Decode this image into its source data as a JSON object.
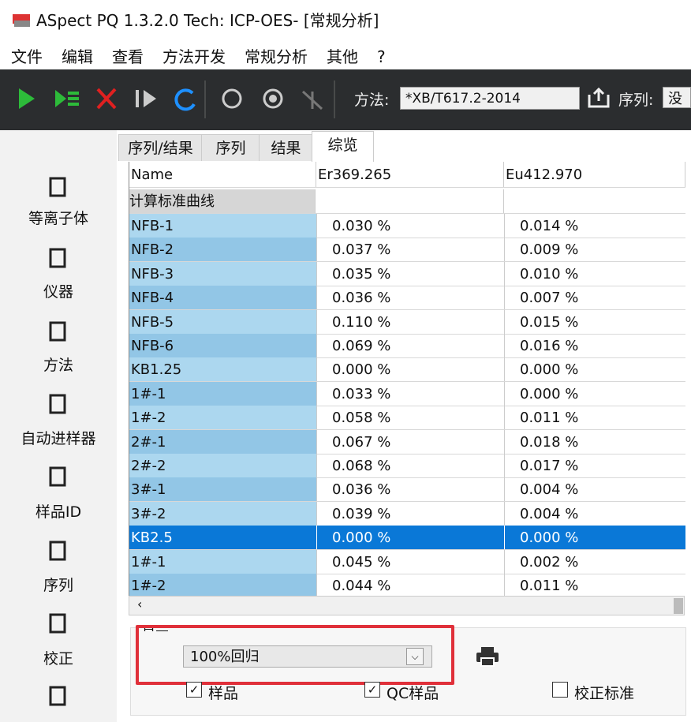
{
  "window": {
    "title": "ASpect PQ 1.3.2.0 Tech: ICP-OES- [常规分析]"
  },
  "menu": [
    "文件",
    "编辑",
    "查看",
    "方法开发",
    "常规分析",
    "其他",
    "?"
  ],
  "toolbar": {
    "method_label": "方法:",
    "method_value": "*XB/T617.2-2014",
    "sequence_label": "序列:",
    "sequence_value": "没"
  },
  "sidebar": [
    "等离子体",
    "仪器",
    "方法",
    "自动进样器",
    "样品ID",
    "序列",
    "校正"
  ],
  "tabs": [
    "序列/结果",
    "序列",
    "结果",
    "综览"
  ],
  "table": {
    "header": [
      "Name",
      "Er369.265",
      "Eu412.970"
    ],
    "group": "计算标准曲线",
    "rows": [
      [
        "NFB-1",
        "0.030 %",
        "0.014 %"
      ],
      [
        "NFB-2",
        "0.037 %",
        "0.009 %"
      ],
      [
        "NFB-3",
        "0.035 %",
        "0.010 %"
      ],
      [
        "NFB-4",
        "0.036 %",
        "0.007 %"
      ],
      [
        "NFB-5",
        "0.110 %",
        "0.015 %"
      ],
      [
        "NFB-6",
        "0.069 %",
        "0.016 %"
      ],
      [
        "KB1.25",
        "0.000 %",
        "0.000 %"
      ],
      [
        "1#-1",
        "0.033 %",
        "0.000 %"
      ],
      [
        "1#-2",
        "0.058 %",
        "0.011 %"
      ],
      [
        "2#-1",
        "0.067 %",
        "0.018 %"
      ],
      [
        "2#-2",
        "0.068 %",
        "0.017 %"
      ],
      [
        "3#-1",
        "0.036 %",
        "0.004 %"
      ],
      [
        "3#-2",
        "0.039 %",
        "0.004 %"
      ],
      [
        "KB2.5",
        "0.000 %",
        "0.000 %"
      ],
      [
        "1#-1",
        "0.045 %",
        "0.002 %"
      ],
      [
        "1#-2",
        "0.044 %",
        "0.011 %"
      ]
    ],
    "selected_row": 13
  },
  "display": {
    "label": "显示",
    "dropdown": "100%回归",
    "checkboxes": [
      "样品",
      "QC样品",
      "校正标准"
    ]
  }
}
